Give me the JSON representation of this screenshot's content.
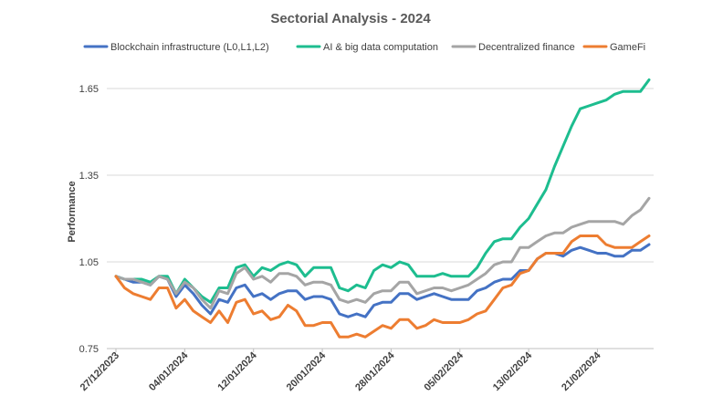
{
  "chart_data": {
    "type": "line",
    "title": "Sectorial Analysis - 2024",
    "xlabel": "",
    "ylabel": "Performance",
    "ylim": [
      0.75,
      1.7
    ],
    "yticks": [
      "0.75",
      "1.05",
      "1.35",
      "1.65"
    ],
    "ytick_values": [
      0.75,
      1.05,
      1.35,
      1.65
    ],
    "grid": true,
    "legend": "top",
    "x_start": "27/12/2023",
    "x": [
      "27/12/2023",
      "28/12/2023",
      "29/12/2023",
      "30/12/2023",
      "31/12/2023",
      "01/01/2024",
      "02/01/2024",
      "03/01/2024",
      "04/01/2024",
      "05/01/2024",
      "06/01/2024",
      "07/01/2024",
      "08/01/2024",
      "09/01/2024",
      "10/01/2024",
      "11/01/2024",
      "12/01/2024",
      "13/01/2024",
      "14/01/2024",
      "15/01/2024",
      "16/01/2024",
      "17/01/2024",
      "18/01/2024",
      "19/01/2024",
      "20/01/2024",
      "21/01/2024",
      "22/01/2024",
      "23/01/2024",
      "24/01/2024",
      "25/01/2024",
      "26/01/2024",
      "27/01/2024",
      "28/01/2024",
      "29/01/2024",
      "30/01/2024",
      "31/01/2024",
      "01/02/2024",
      "02/02/2024",
      "03/02/2024",
      "04/02/2024",
      "05/02/2024",
      "06/02/2024",
      "07/02/2024",
      "08/02/2024",
      "09/02/2024",
      "10/02/2024",
      "11/02/2024",
      "12/02/2024",
      "13/02/2024",
      "14/02/2024",
      "15/02/2024",
      "16/02/2024",
      "17/02/2024",
      "18/02/2024",
      "19/02/2024",
      "20/02/2024",
      "21/02/2024",
      "22/02/2024",
      "23/02/2024",
      "24/02/2024",
      "25/02/2024",
      "26/02/2024",
      "27/02/2024"
    ],
    "xtick_labels": [
      "27/12/2023",
      "04/01/2024",
      "12/01/2024",
      "20/01/2024",
      "28/01/2024",
      "05/02/2024",
      "13/02/2024",
      "21/02/2024"
    ],
    "xtick_indices": [
      0,
      8,
      16,
      24,
      32,
      40,
      48,
      56
    ],
    "series": [
      {
        "name": "Blockchain infrastructure (L0,L1,L2)",
        "color": "#4472c4",
        "values": [
          1.0,
          0.99,
          0.98,
          0.98,
          0.97,
          1.0,
          0.99,
          0.93,
          0.97,
          0.94,
          0.9,
          0.87,
          0.92,
          0.91,
          0.96,
          0.97,
          0.93,
          0.94,
          0.92,
          0.94,
          0.95,
          0.95,
          0.92,
          0.93,
          0.93,
          0.92,
          0.87,
          0.86,
          0.87,
          0.86,
          0.9,
          0.91,
          0.91,
          0.94,
          0.94,
          0.92,
          0.93,
          0.94,
          0.93,
          0.92,
          0.92,
          0.92,
          0.95,
          0.96,
          0.98,
          0.99,
          0.99,
          1.02,
          1.02,
          1.06,
          1.08,
          1.08,
          1.07,
          1.09,
          1.1,
          1.09,
          1.08,
          1.08,
          1.07,
          1.07,
          1.09,
          1.09,
          1.11
        ]
      },
      {
        "name": "AI & big data computation",
        "color": "#1dbd8f",
        "values": [
          1.0,
          0.99,
          0.99,
          0.99,
          0.98,
          1.0,
          1.0,
          0.94,
          0.99,
          0.96,
          0.93,
          0.91,
          0.96,
          0.96,
          1.03,
          1.04,
          1.0,
          1.03,
          1.02,
          1.04,
          1.05,
          1.04,
          1.0,
          1.03,
          1.03,
          1.03,
          0.96,
          0.95,
          0.97,
          0.96,
          1.02,
          1.04,
          1.03,
          1.05,
          1.04,
          1.0,
          1.0,
          1.0,
          1.01,
          1.0,
          1.0,
          1.0,
          1.03,
          1.08,
          1.12,
          1.13,
          1.13,
          1.17,
          1.2,
          1.25,
          1.3,
          1.38,
          1.45,
          1.52,
          1.58,
          1.59,
          1.6,
          1.61,
          1.63,
          1.64,
          1.64,
          1.64,
          1.68
        ]
      },
      {
        "name": "Decentralized finance",
        "color": "#a5a5a5",
        "values": [
          1.0,
          0.99,
          0.99,
          0.98,
          0.97,
          1.0,
          0.99,
          0.94,
          0.98,
          0.96,
          0.92,
          0.89,
          0.95,
          0.94,
          1.01,
          1.03,
          0.99,
          1.0,
          0.98,
          1.01,
          1.01,
          1.0,
          0.97,
          0.98,
          0.98,
          0.97,
          0.92,
          0.91,
          0.92,
          0.91,
          0.94,
          0.95,
          0.95,
          0.98,
          0.98,
          0.94,
          0.95,
          0.96,
          0.96,
          0.95,
          0.96,
          0.97,
          0.99,
          1.01,
          1.04,
          1.05,
          1.05,
          1.1,
          1.1,
          1.12,
          1.14,
          1.15,
          1.15,
          1.17,
          1.18,
          1.19,
          1.19,
          1.19,
          1.19,
          1.18,
          1.21,
          1.23,
          1.27
        ]
      },
      {
        "name": "GameFi",
        "color": "#ed7d31",
        "values": [
          1.0,
          0.96,
          0.94,
          0.93,
          0.92,
          0.96,
          0.96,
          0.89,
          0.92,
          0.88,
          0.86,
          0.84,
          0.88,
          0.84,
          0.91,
          0.92,
          0.87,
          0.88,
          0.85,
          0.86,
          0.9,
          0.88,
          0.83,
          0.83,
          0.84,
          0.84,
          0.79,
          0.79,
          0.8,
          0.79,
          0.81,
          0.83,
          0.82,
          0.85,
          0.85,
          0.82,
          0.83,
          0.85,
          0.84,
          0.84,
          0.84,
          0.85,
          0.87,
          0.88,
          0.92,
          0.96,
          0.97,
          1.01,
          1.02,
          1.06,
          1.08,
          1.08,
          1.08,
          1.12,
          1.14,
          1.14,
          1.14,
          1.11,
          1.1,
          1.1,
          1.1,
          1.12,
          1.14
        ]
      }
    ]
  }
}
